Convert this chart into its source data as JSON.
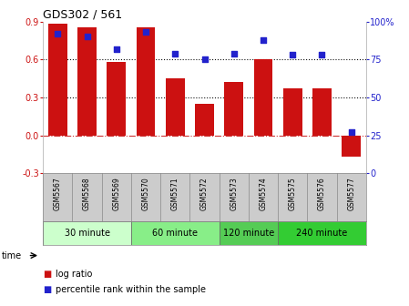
{
  "title": "GDS302 / 561",
  "samples": [
    "GSM5567",
    "GSM5568",
    "GSM5569",
    "GSM5570",
    "GSM5571",
    "GSM5572",
    "GSM5573",
    "GSM5574",
    "GSM5575",
    "GSM5576",
    "GSM5577"
  ],
  "log_ratio": [
    0.88,
    0.85,
    0.58,
    0.85,
    0.45,
    0.25,
    0.42,
    0.6,
    0.37,
    0.37,
    -0.17
  ],
  "percentile": [
    92,
    90,
    82,
    93,
    79,
    75,
    79,
    88,
    78,
    78,
    27
  ],
  "bar_color": "#cc1111",
  "dot_color": "#2222cc",
  "ylim_left": [
    -0.3,
    0.9
  ],
  "ylim_right": [
    0,
    100
  ],
  "yticks_left": [
    -0.3,
    0.0,
    0.3,
    0.6,
    0.9
  ],
  "yticks_right": [
    0,
    25,
    50,
    75,
    100
  ],
  "ytick_labels_right": [
    "0",
    "25",
    "50",
    "75",
    "100%"
  ],
  "dotted_lines": [
    0.3,
    0.6
  ],
  "zero_line_color": "#cc3333",
  "grid_color": "#111111",
  "groups": [
    {
      "label": "30 minute",
      "start": 0,
      "end": 3,
      "color": "#ccffcc"
    },
    {
      "label": "60 minute",
      "start": 3,
      "end": 6,
      "color": "#88ee88"
    },
    {
      "label": "120 minute",
      "start": 6,
      "end": 8,
      "color": "#55cc55"
    },
    {
      "label": "240 minute",
      "start": 8,
      "end": 11,
      "color": "#33cc33"
    }
  ],
  "time_label": "time",
  "legend_log_ratio": "log ratio",
  "legend_percentile": "percentile rank within the sample",
  "bg_color": "#ffffff",
  "plot_bg_color": "#ffffff",
  "tick_label_color_left": "#cc1111",
  "tick_label_color_right": "#2222cc",
  "bar_width": 0.65,
  "sample_bg": "#cccccc"
}
